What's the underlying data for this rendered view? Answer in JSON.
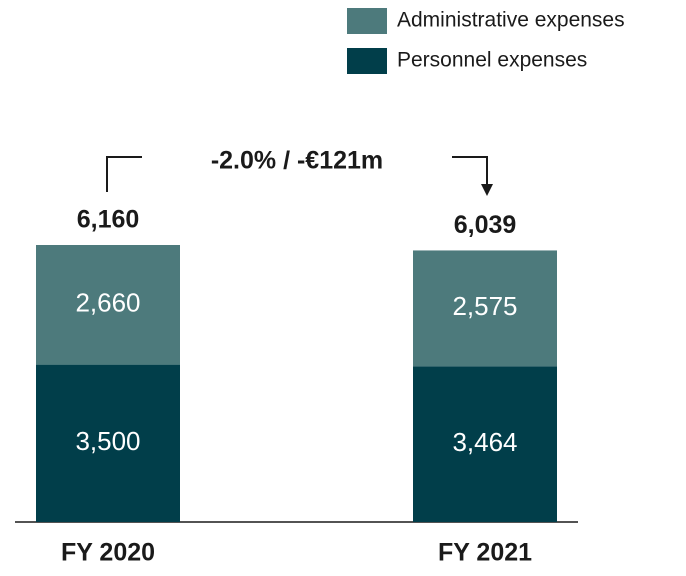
{
  "chart_data": {
    "type": "bar",
    "stacked": true,
    "categories": [
      "FY 2020",
      "FY 2021"
    ],
    "series": [
      {
        "name": "Personnel expenses",
        "color": "#013e4a",
        "values": [
          3500,
          3464
        ],
        "value_labels": [
          "3,500",
          "3,464"
        ]
      },
      {
        "name": "Administrative expenses",
        "color": "#4d7a7c",
        "values": [
          2660,
          2575
        ],
        "value_labels": [
          "2,660",
          "2,575"
        ]
      }
    ],
    "totals": [
      6160,
      6039
    ],
    "total_labels": [
      "6,160",
      "6,039"
    ],
    "annotation": "-2.0% / -€121m"
  }
}
